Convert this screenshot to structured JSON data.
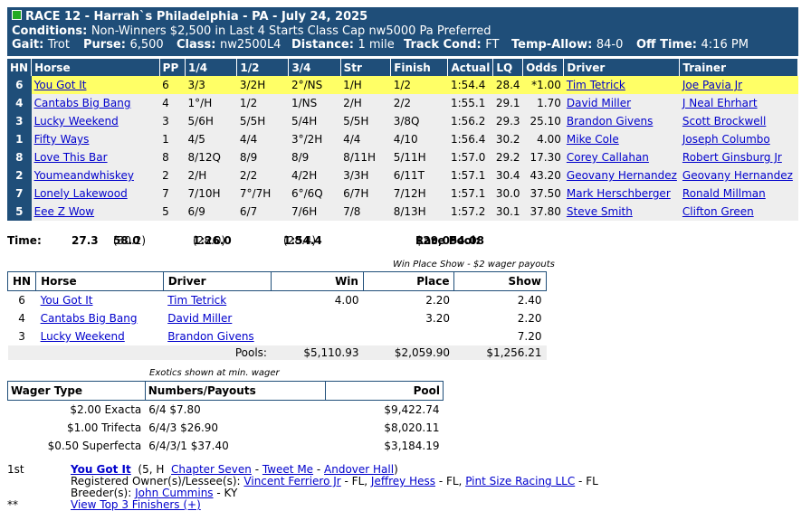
{
  "header": {
    "race_title": "RACE 12 - Harrah`s Philadelphia - PA - July 24, 2025",
    "conditions_label": "Conditions:",
    "conditions": "Non-Winners $2,500 in Last 4 Starts Class Cap nw5000 Pa Preferred",
    "gait_label": "Gait:",
    "gait": "Trot",
    "purse_label": "Purse:",
    "purse": "6,500",
    "class_label": "Class:",
    "class": "nw2500L4",
    "distance_label": "Distance:",
    "distance": "1 mile",
    "track_label": "Track Cond:",
    "track": "FT",
    "temp_label": "Temp-Allow:",
    "temp": "84-0",
    "off_label": "Off Time:",
    "off": "4:16 PM"
  },
  "columns": [
    "HN",
    "Horse",
    "PP",
    "1/4",
    "1/2",
    "3/4",
    "Str",
    "Finish",
    "Actual",
    "LQ",
    "Odds",
    "Driver",
    "Trainer"
  ],
  "entries": [
    {
      "hn": "6",
      "horse": "You Got It",
      "pp": "6",
      "q1": "3/3",
      "q2": "3/2H",
      "q3": "2°/NS",
      "str": "1/H",
      "fin": "1/2",
      "actual": "1:54.4",
      "lq": "28.4",
      "odds": "*1.00",
      "driver": "Tim Tetrick",
      "trainer": "Joe Pavia Jr"
    },
    {
      "hn": "4",
      "horse": "Cantabs Big Bang",
      "pp": "4",
      "q1": "1°/H",
      "q2": "1/2",
      "q3": "1/NS",
      "str": "2/H",
      "fin": "2/2",
      "actual": "1:55.1",
      "lq": "29.1",
      "odds": "1.70",
      "driver": "David Miller",
      "trainer": "J Neal Ehrhart"
    },
    {
      "hn": "3",
      "horse": "Lucky Weekend",
      "pp": "3",
      "q1": "5/6H",
      "q2": "5/5H",
      "q3": "5/4H",
      "str": "5/5H",
      "fin": "3/8Q",
      "actual": "1:56.2",
      "lq": "29.3",
      "odds": "25.10",
      "driver": "Brandon Givens",
      "trainer": "Scott Brockwell"
    },
    {
      "hn": "1",
      "horse": "Fifty Ways",
      "pp": "1",
      "q1": "4/5",
      "q2": "4/4",
      "q3": "3°/2H",
      "str": "4/4",
      "fin": "4/10",
      "actual": "1:56.4",
      "lq": "30.2",
      "odds": "4.00",
      "driver": "Mike Cole",
      "trainer": "Joseph Columbo"
    },
    {
      "hn": "8",
      "horse": "Love This Bar",
      "pp": "8",
      "q1": "8/12Q",
      "q2": "8/9",
      "q3": "8/9",
      "str": "8/11H",
      "fin": "5/11H",
      "actual": "1:57.0",
      "lq": "29.2",
      "odds": "17.30",
      "driver": "Corey Callahan",
      "trainer": "Robert Ginsburg Jr"
    },
    {
      "hn": "2",
      "horse": "Youmeandwhiskey",
      "pp": "2",
      "q1": "2/H",
      "q2": "2/2",
      "q3": "4/2H",
      "str": "3/3H",
      "fin": "6/11T",
      "actual": "1:57.1",
      "lq": "30.4",
      "odds": "43.20",
      "driver": "Geovany Hernandez",
      "trainer": "Geovany Hernandez"
    },
    {
      "hn": "7",
      "horse": "Lonely Lakewood",
      "pp": "7",
      "q1": "7/10H",
      "q2": "7°/7H",
      "q3": "6°/6Q",
      "str": "6/7H",
      "fin": "7/12H",
      "actual": "1:57.1",
      "lq": "30.0",
      "odds": "37.50",
      "driver": "Mark Herschberger",
      "trainer": "Ronald Millman"
    },
    {
      "hn": "5",
      "horse": "Eee Z Wow",
      "pp": "5",
      "q1": "6/9",
      "q2": "6/7",
      "q3": "7/6H",
      "str": "7/8",
      "fin": "8/13H",
      "actual": "1:57.2",
      "lq": "30.1",
      "odds": "37.80",
      "driver": "Steve Smith",
      "trainer": "Clifton Green"
    }
  ],
  "times": {
    "label": "Time:",
    "q1": "27.3",
    "q2": "58.0",
    "q2_split": "(30.2)",
    "q3": "1:26.0",
    "q3_split": "(28.0)",
    "fin": "1:54.4",
    "fin_split": "(28.4)",
    "pool_label": "Race Pool:",
    "pool": "$29,054.08"
  },
  "payouts": {
    "note": "Win Place Show - $2 wager payouts",
    "headers": [
      "HN",
      "Horse",
      "Driver",
      "Win",
      "Place",
      "Show"
    ],
    "rows": [
      {
        "hn": "6",
        "horse": "You Got It",
        "driver": "Tim Tetrick",
        "win": "4.00",
        "place": "2.20",
        "show": "2.40"
      },
      {
        "hn": "4",
        "horse": "Cantabs Big Bang",
        "driver": "David Miller",
        "win": "",
        "place": "3.20",
        "show": "2.20"
      },
      {
        "hn": "3",
        "horse": "Lucky Weekend",
        "driver": "Brandon Givens",
        "win": "",
        "place": "",
        "show": "7.20"
      }
    ],
    "pools_label": "Pools:",
    "pool_win": "$5,110.93",
    "pool_place": "$2,059.90",
    "pool_show": "$1,256.21"
  },
  "exotics": {
    "note": "Exotics shown at min. wager",
    "headers": [
      "Wager Type",
      "Numbers/Payouts",
      "Pool"
    ],
    "rows": [
      {
        "type": "$2.00 Exacta",
        "payout": "6/4 $7.80",
        "pool": "$9,422.74"
      },
      {
        "type": "$1.00 Trifecta",
        "payout": "6/4/3 $26.90",
        "pool": "$8,020.11"
      },
      {
        "type": "$0.50 Superfecta",
        "payout": "6/4/3/1 $37.40",
        "pool": "$3,184.19"
      }
    ]
  },
  "footer": {
    "place": "1st",
    "winner": "You Got It",
    "age_sex": "(5, H",
    "sire": "Chapter Seven",
    "dam": "Tweet Me",
    "damsire": "Andover Hall",
    "close_paren": ")",
    "owners_label": "Registered Owner(s)/Lessee(s):",
    "owners": [
      {
        "name": "Vincent Ferriero Jr",
        "loc": " - FL,"
      },
      {
        "name": "Jeffrey Hess",
        "loc": " - FL,"
      },
      {
        "name": "Pint Size Racing LLC",
        "loc": " - FL"
      }
    ],
    "breeder_label": "Breeder(s):",
    "breeder": "John Cummins",
    "breeder_loc": " - KY",
    "stars": "**",
    "top3_link": "View Top 3 Finishers (+)"
  },
  "colors": {
    "header_bg": "#1f4e79",
    "winner_row": "#ffff66",
    "row_bg": "#eeeeee",
    "link": "#0000cc"
  }
}
